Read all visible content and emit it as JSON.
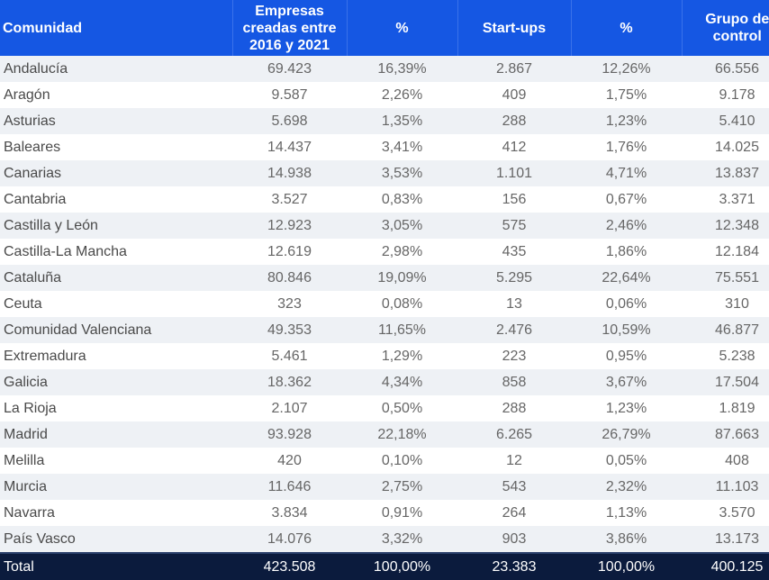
{
  "table": {
    "headers": [
      "Comunidad",
      "Empresas creadas entre 2016 y 2021",
      "%",
      "Start-ups",
      "%",
      "Grupo de control"
    ],
    "rows": [
      [
        "Andalucía",
        "69.423",
        "16,39%",
        "2.867",
        "12,26%",
        "66.556"
      ],
      [
        "Aragón",
        "9.587",
        "2,26%",
        "409",
        "1,75%",
        "9.178"
      ],
      [
        "Asturias",
        "5.698",
        "1,35%",
        "288",
        "1,23%",
        "5.410"
      ],
      [
        "Baleares",
        "14.437",
        "3,41%",
        "412",
        "1,76%",
        "14.025"
      ],
      [
        "Canarias",
        "14.938",
        "3,53%",
        "1.101",
        "4,71%",
        "13.837"
      ],
      [
        "Cantabria",
        "3.527",
        "0,83%",
        "156",
        "0,67%",
        "3.371"
      ],
      [
        "Castilla y León",
        "12.923",
        "3,05%",
        "575",
        "2,46%",
        "12.348"
      ],
      [
        "Castilla-La Mancha",
        "12.619",
        "2,98%",
        "435",
        "1,86%",
        "12.184"
      ],
      [
        "Cataluña",
        "80.846",
        "19,09%",
        "5.295",
        "22,64%",
        "75.551"
      ],
      [
        "Ceuta",
        "323",
        "0,08%",
        "13",
        "0,06%",
        "310"
      ],
      [
        "Comunidad Valenciana",
        "49.353",
        "11,65%",
        "2.476",
        "10,59%",
        "46.877"
      ],
      [
        "Extremadura",
        "5.461",
        "1,29%",
        "223",
        "0,95%",
        "5.238"
      ],
      [
        "Galicia",
        "18.362",
        "4,34%",
        "858",
        "3,67%",
        "17.504"
      ],
      [
        "La Rioja",
        "2.107",
        "0,50%",
        "288",
        "1,23%",
        "1.819"
      ],
      [
        "Madrid",
        "93.928",
        "22,18%",
        "6.265",
        "26,79%",
        "87.663"
      ],
      [
        "Melilla",
        "420",
        "0,10%",
        "12",
        "0,05%",
        "408"
      ],
      [
        "Murcia",
        "11.646",
        "2,75%",
        "543",
        "2,32%",
        "11.103"
      ],
      [
        "Navarra",
        "3.834",
        "0,91%",
        "264",
        "1,13%",
        "3.570"
      ],
      [
        "País Vasco",
        "14.076",
        "3,32%",
        "903",
        "3,86%",
        "13.173"
      ]
    ],
    "total": [
      "Total",
      "423.508",
      "100,00%",
      "23.383",
      "100,00%",
      "400.125"
    ]
  },
  "colors": {
    "header": "#1557e3",
    "total_row": "#0b1b3d",
    "stripe": "#eef1f5"
  }
}
